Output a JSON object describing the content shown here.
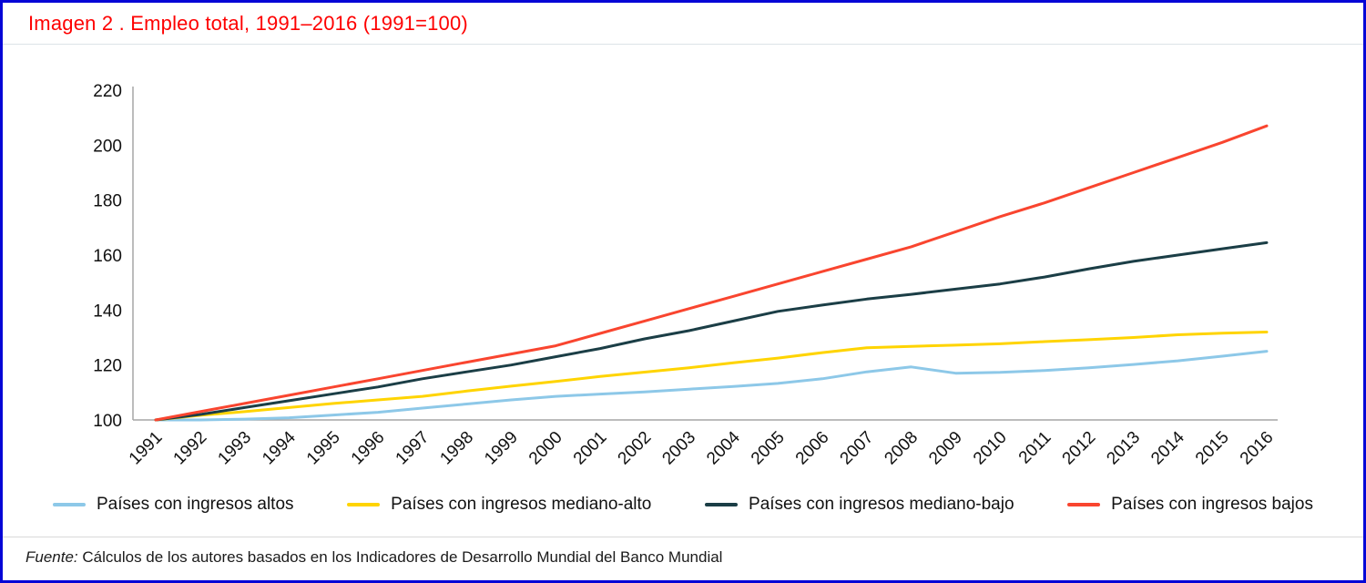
{
  "title": "Imagen 2 . Empleo total, 1991–2016 (1991=100)",
  "source": {
    "label": "Fuente:",
    "text": " Cálculos de los autores basados en los Indicadores de Desarrollo Mundial del Banco Mundial"
  },
  "colors": {
    "title": "#FE0000",
    "border": "#0505D6",
    "axis": "#A6A6A6",
    "altos": "#8DC8E8",
    "mediano_alto": "#FFD400",
    "mediano_bajo": "#1B3E46",
    "bajos": "#F9452F"
  },
  "chart_data": {
    "type": "line",
    "title": "Empleo total, 1991–2016 (1991=100)",
    "xlabel": "",
    "ylabel": "",
    "x": [
      1991,
      1992,
      1993,
      1994,
      1995,
      1996,
      1997,
      1998,
      1999,
      2000,
      2001,
      2002,
      2003,
      2004,
      2005,
      2006,
      2007,
      2008,
      2009,
      2010,
      2011,
      2012,
      2013,
      2014,
      2015,
      2016
    ],
    "ylim": [
      100,
      220
    ],
    "yticks": [
      100,
      120,
      140,
      160,
      180,
      200,
      220
    ],
    "grid": false,
    "legend_position": "bottom",
    "series": [
      {
        "name": "Países con ingresos altos",
        "color": "#8DC8E8",
        "values": [
          100,
          100,
          100.3,
          100.8,
          101.8,
          102.8,
          104.3,
          105.8,
          107.3,
          108.6,
          109.4,
          110.2,
          111.2,
          112.2,
          113.3,
          115,
          117.5,
          119.3,
          117,
          117.3,
          118,
          119,
          120.2,
          121.5,
          123.2,
          125
        ]
      },
      {
        "name": "Países con ingresos mediano-alto",
        "color": "#FFD400",
        "values": [
          100,
          101.7,
          103,
          104.5,
          106,
          107.3,
          108.6,
          110.5,
          112.3,
          114,
          115.8,
          117.4,
          119,
          120.8,
          122.5,
          124.5,
          126.3,
          126.8,
          127.2,
          127.7,
          128.5,
          129.2,
          130,
          131,
          131.6,
          132
        ]
      },
      {
        "name": "Países con ingresos mediano-bajo",
        "color": "#1B3E46",
        "values": [
          100,
          102,
          104.5,
          107,
          109.5,
          112,
          115,
          117.5,
          120,
          123,
          126,
          129.5,
          132.5,
          136,
          139.5,
          141.8,
          144,
          145.7,
          147.6,
          149.5,
          152,
          155,
          157.7,
          160,
          162.3,
          164.5
        ]
      },
      {
        "name": "Países con ingresos bajos",
        "color": "#F9452F",
        "values": [
          100,
          103,
          106,
          109,
          112,
          115,
          118,
          121,
          124,
          127,
          131.5,
          136,
          140.5,
          145,
          149.5,
          154,
          158.5,
          163,
          168.5,
          174,
          179,
          184.5,
          190,
          195.5,
          201,
          207
        ]
      }
    ]
  }
}
